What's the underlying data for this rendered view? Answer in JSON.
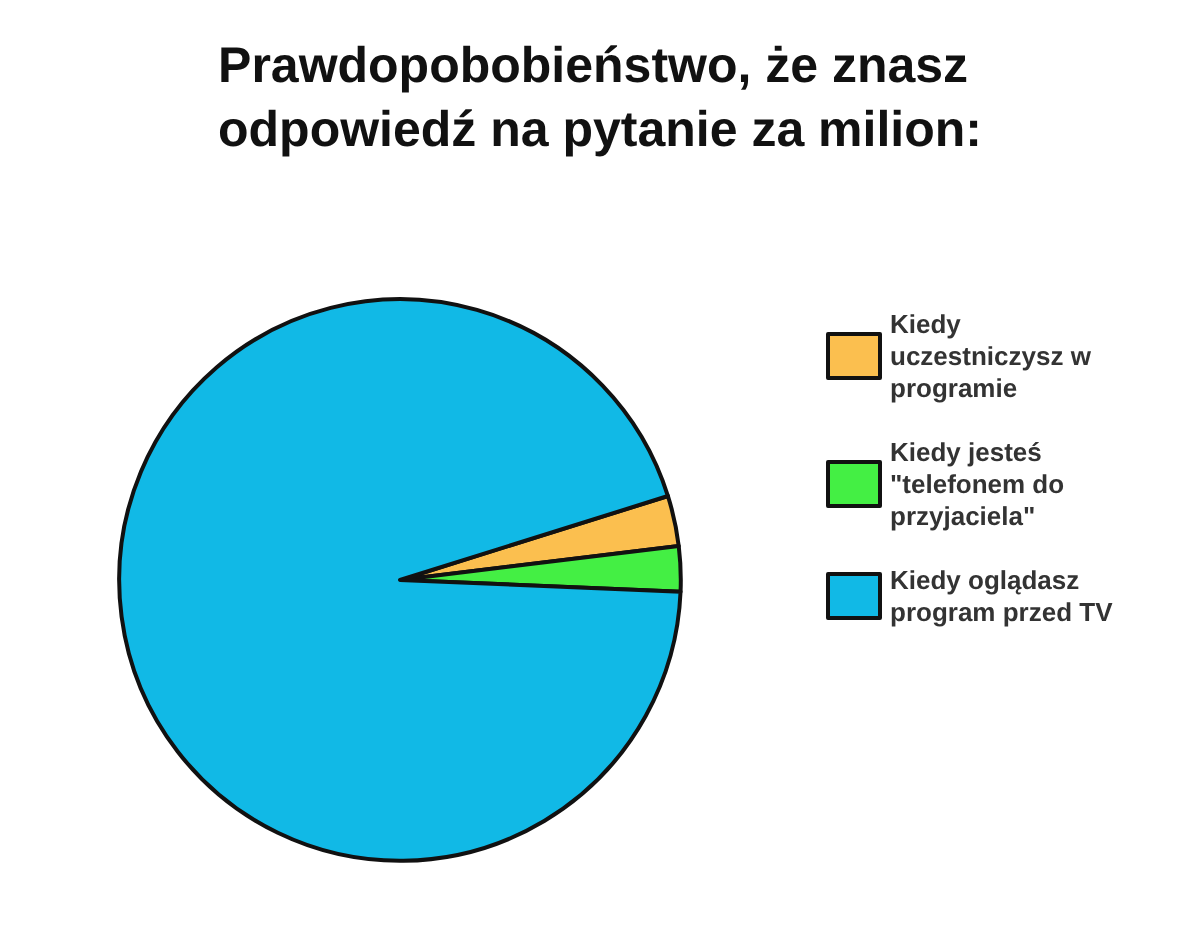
{
  "chart_data": {
    "type": "pie",
    "title": "Prawdopobobieństwo, że znasz odpowiedź na pytanie za milion:",
    "categories": [
      "Kiedy uczestniczysz w programie",
      "Kiedy jesteś \"telefonem do przyjaciela\"",
      "Kiedy oglądasz program przed TV"
    ],
    "values": [
      2.9,
      2.6,
      94.5
    ],
    "colors": [
      "#fbbf4f",
      "#44ef44",
      "#11b9e6"
    ],
    "legend": "right"
  }
}
